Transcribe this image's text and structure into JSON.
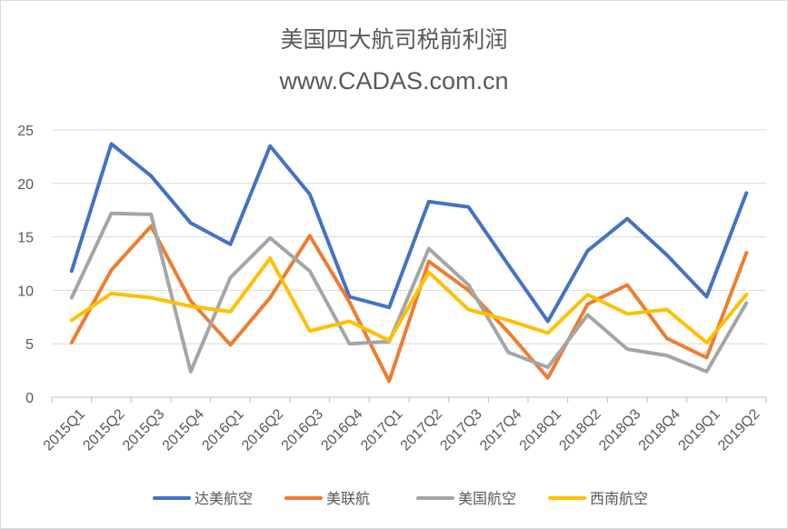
{
  "chart_data": {
    "type": "line",
    "title": "美国四大航司税前利润",
    "subtitle": "www.CADAS.com.cn",
    "categories": [
      "2015Q1",
      "2015Q2",
      "2015Q3",
      "2015Q4",
      "2016Q1",
      "2016Q2",
      "2016Q3",
      "2016Q4",
      "2017Q1",
      "2017Q2",
      "2017Q3",
      "2017Q4",
      "2018Q1",
      "2018Q2",
      "2018Q3",
      "2018Q4",
      "2019Q1",
      "2019Q2"
    ],
    "yticks": [
      "0",
      "5",
      "10",
      "15",
      "20",
      "25"
    ],
    "ylim": [
      0,
      25
    ],
    "grid": true,
    "legend_position": "bottom",
    "series": [
      {
        "name": "达美航空",
        "color": "#4472C4",
        "values": [
          11.8,
          23.7,
          20.7,
          16.3,
          14.3,
          23.5,
          19.0,
          9.4,
          8.4,
          18.3,
          17.8,
          12.4,
          7.1,
          13.7,
          16.7,
          13.3,
          9.4,
          19.1
        ]
      },
      {
        "name": "美联航",
        "color": "#ED7D31",
        "values": [
          5.1,
          11.9,
          16.0,
          9.0,
          4.9,
          9.3,
          15.1,
          8.9,
          1.5,
          12.7,
          10.0,
          6.1,
          1.8,
          8.7,
          10.5,
          5.5,
          3.7,
          13.5
        ]
      },
      {
        "name": "美国航空",
        "color": "#A5A5A5",
        "values": [
          9.3,
          17.2,
          17.1,
          2.4,
          11.2,
          14.9,
          11.8,
          5.0,
          5.2,
          13.9,
          10.5,
          4.2,
          2.8,
          7.7,
          4.5,
          3.9,
          2.4,
          8.8
        ]
      },
      {
        "name": "西南航空",
        "color": "#FFC000",
        "values": [
          7.2,
          9.7,
          9.3,
          8.5,
          8.0,
          13.0,
          6.2,
          7.1,
          5.3,
          11.7,
          8.2,
          7.2,
          6.0,
          9.6,
          7.8,
          8.2,
          5.1,
          9.6
        ]
      }
    ]
  }
}
